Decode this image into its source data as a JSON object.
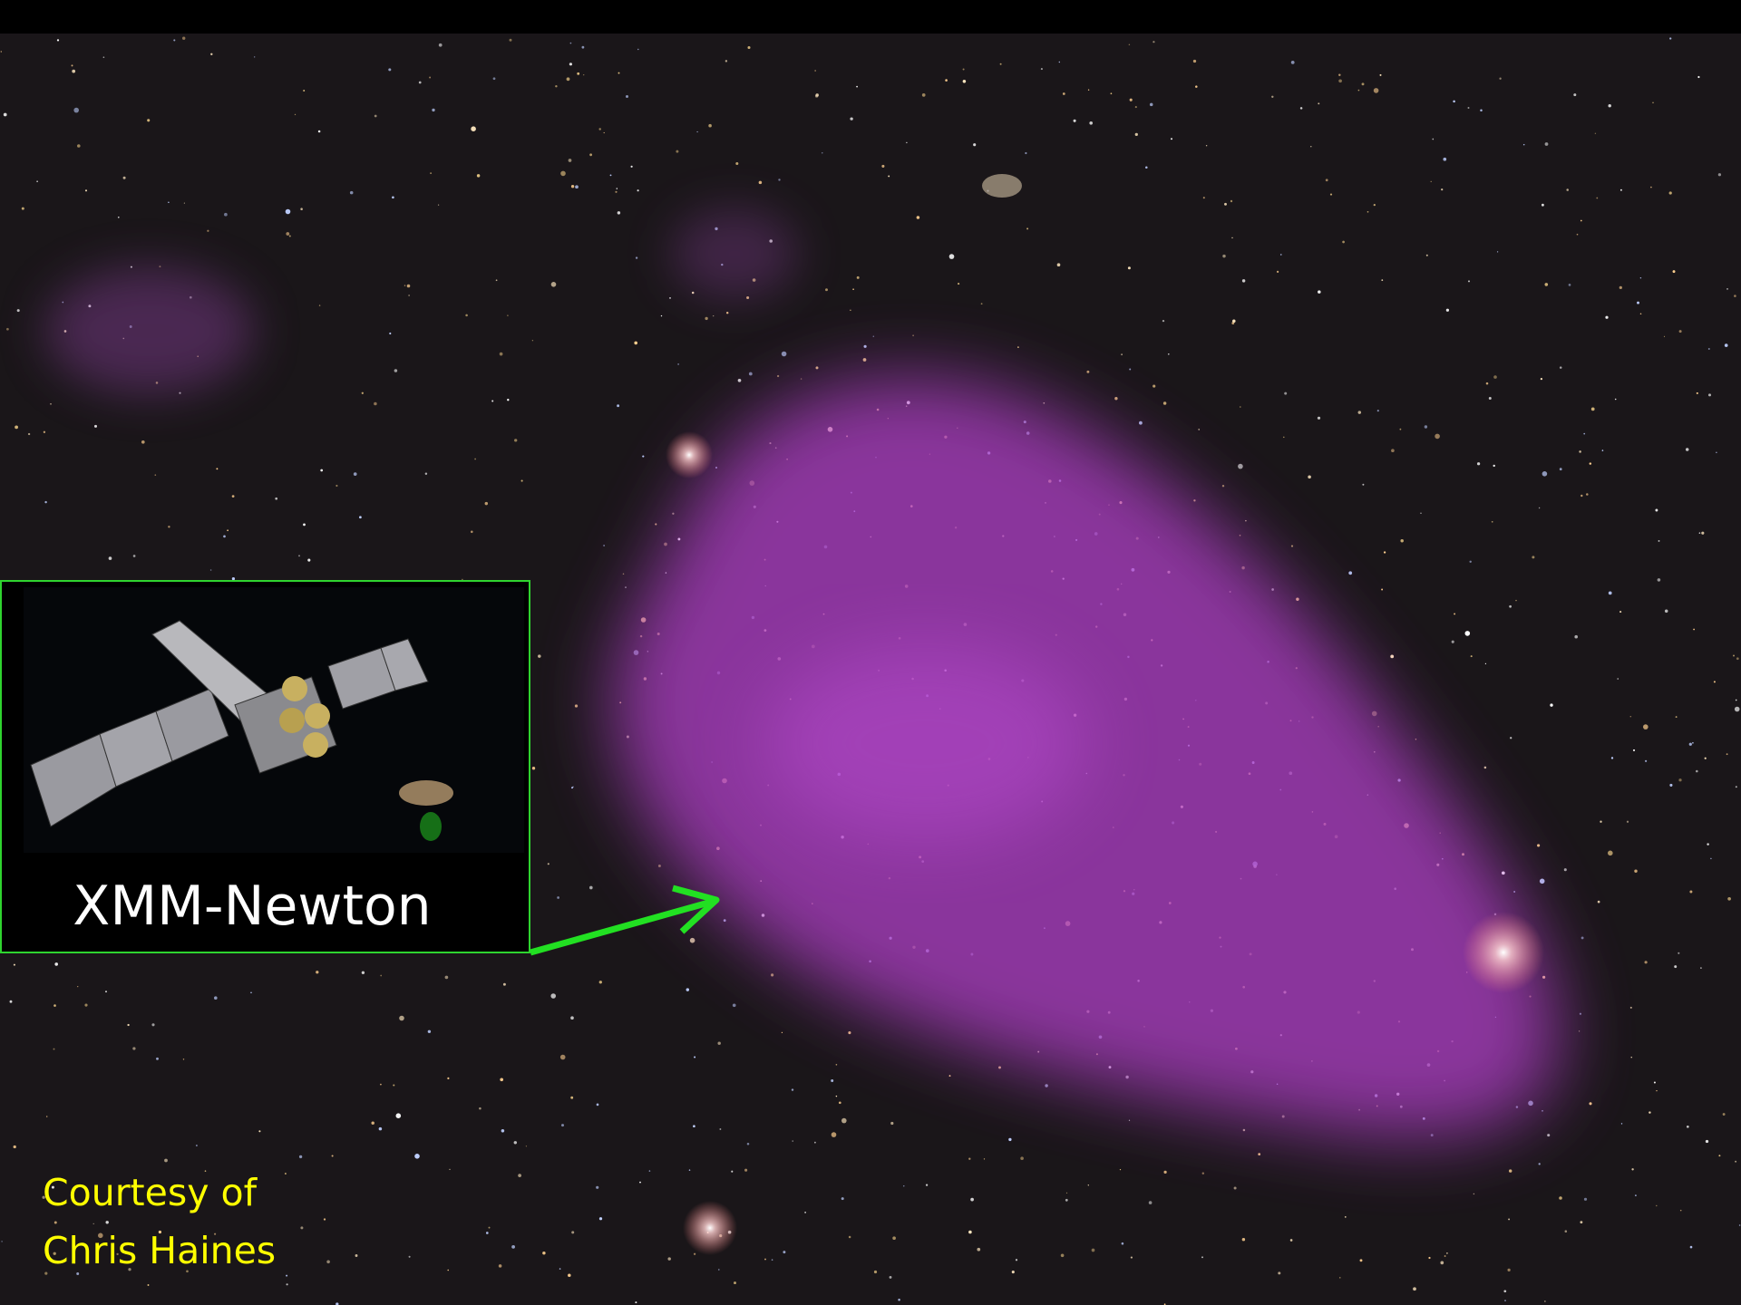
{
  "inset": {
    "label": "XMM-Newton"
  },
  "credit": {
    "lines": [
      "Courtesy of",
      "Chris Haines"
    ]
  }
}
